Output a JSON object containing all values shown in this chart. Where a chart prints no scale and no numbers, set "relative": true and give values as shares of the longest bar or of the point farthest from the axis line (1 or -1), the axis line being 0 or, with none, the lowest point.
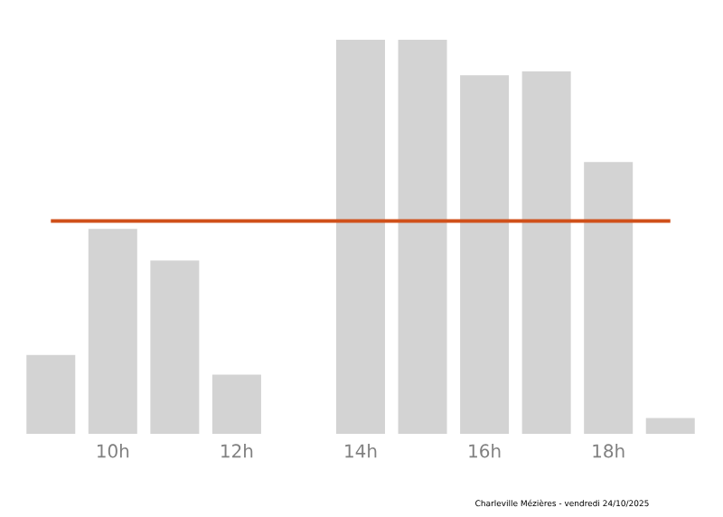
{
  "chart_data": {
    "type": "bar",
    "relative": true,
    "categories": [
      null,
      "10h",
      null,
      "12h",
      null,
      "14h",
      null,
      "16h",
      null,
      "18h",
      null
    ],
    "values": [
      0.2,
      0.52,
      0.44,
      0.15,
      0,
      1,
      1,
      0.91,
      0.92,
      0.69,
      0.04
    ],
    "color": "#d3d3d3",
    "ref_lines": [
      {
        "axis": "y",
        "value": 0.54,
        "color": "#d0501a"
      }
    ],
    "annotations": [
      "Charleville Mézières - vendredi 24/10/2025"
    ]
  }
}
